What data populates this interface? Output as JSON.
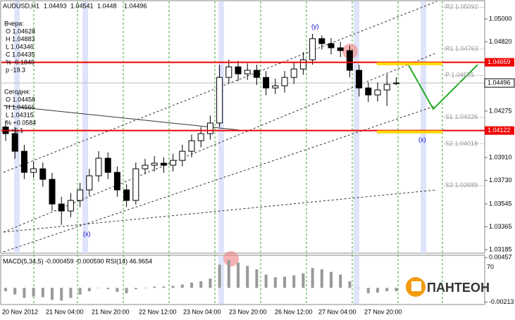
{
  "chart_data": {
    "type": "candlestick",
    "title": "AUDUSD,H1",
    "open": [
      1.0415,
      1.04098,
      1.03959,
      1.03793,
      1.03821,
      1.03738,
      1.03544,
      1.03489,
      1.03572,
      1.03655,
      1.03766,
      1.03904,
      1.03793,
      1.03655,
      1.03572,
      1.03821,
      1.03849,
      1.03865,
      1.03849,
      1.03887,
      1.03959,
      1.04042,
      1.04098,
      1.04181,
      1.0454,
      1.04623,
      1.04568,
      1.04596,
      1.0454,
      1.04457,
      1.04474,
      1.0454,
      1.04606,
      1.04679,
      1.04845,
      1.04806,
      1.04773,
      1.04751,
      1.04596,
      1.04457,
      1.04402,
      1.04441,
      1.04493
    ],
    "high": [
      1.042,
      1.0415,
      1.0401,
      1.0388,
      1.0387,
      1.0379,
      1.036,
      1.0363,
      1.0371,
      1.0382,
      1.0396,
      1.0395,
      1.0384,
      1.037,
      1.0387,
      1.039,
      1.0392,
      1.0391,
      1.0394,
      1.0401,
      1.0409,
      1.0415,
      1.0424,
      1.0464,
      1.0468,
      1.0467,
      1.0465,
      1.0464,
      1.0459,
      1.0453,
      1.0459,
      1.0466,
      1.0474,
      1.04883,
      1.0487,
      1.0485,
      1.0482,
      1.0479,
      1.0464,
      1.045,
      1.045,
      1.04566,
      1.04541
    ],
    "low": [
      1.0404,
      1.039,
      1.0374,
      1.0375,
      1.0368,
      1.0349,
      1.0338,
      1.0344,
      1.0352,
      1.0361,
      1.0372,
      1.0374,
      1.036,
      1.0352,
      1.0354,
      1.0378,
      1.038,
      1.0379,
      1.038,
      1.0384,
      1.0391,
      1.0399,
      1.0405,
      1.0415,
      1.0449,
      1.0451,
      1.0452,
      1.0448,
      1.044,
      1.0441,
      1.0442,
      1.0449,
      1.0456,
      1.0464,
      1.0476,
      1.0472,
      1.047,
      1.0454,
      1.0439,
      1.04346,
      1.0435,
      1.04315,
      1.0448
    ],
    "close": [
      1.04098,
      1.03959,
      1.03793,
      1.03821,
      1.03738,
      1.03544,
      1.03489,
      1.03572,
      1.03655,
      1.03766,
      1.03904,
      1.03793,
      1.03655,
      1.03572,
      1.03821,
      1.03849,
      1.03865,
      1.03849,
      1.03887,
      1.03959,
      1.04042,
      1.04098,
      1.04181,
      1.0454,
      1.04623,
      1.04568,
      1.04596,
      1.0454,
      1.04457,
      1.04474,
      1.0454,
      1.04606,
      1.04679,
      1.04845,
      1.04806,
      1.04773,
      1.04751,
      1.04596,
      1.04457,
      1.04402,
      1.04441,
      1.04485,
      1.04496
    ],
    "ylim": [
      1.03157,
      1.05138
    ],
    "yticks": [
      {
        "value": 1.05,
        "label": "1.05000"
      },
      {
        "value": 1.0482,
        "label": "1.04820"
      },
      {
        "value": 1.04275,
        "label": "1.04275"
      },
      {
        "value": 1.0391,
        "label": "1.03910"
      },
      {
        "value": 1.0373,
        "label": "1.03730"
      },
      {
        "value": 1.03545,
        "label": "1.03545"
      },
      {
        "value": 1.03365,
        "label": "1.03365"
      },
      {
        "value": 1.03185,
        "label": "1.03185"
      }
    ],
    "current_price": {
      "value": 1.04496,
      "label": "1.04496"
    },
    "levels": [
      {
        "value": 1.04659,
        "label": "1.04659"
      },
      {
        "value": 1.04122,
        "label": "1.04122"
      }
    ],
    "pivots": [
      {
        "value": 1.05092,
        "label": "R2 1.05092"
      },
      {
        "value": 1.04763,
        "label": "R1 1.04763"
      },
      {
        "value": 1.04555,
        "label": "P 1.04555"
      },
      {
        "value": 1.04226,
        "label": "S1 1.04226"
      },
      {
        "value": 1.04018,
        "label": "S2 1.04018"
      },
      {
        "value": 1.03689,
        "label": "S3 1.03689"
      }
    ],
    "yesterday": {
      "title": "Вчера:",
      "lines": [
        "O 1.04628",
        "H 1.04883",
        "L 1.04346",
        "C 1.04435",
        "% -0.1845",
        "p -19.3"
      ]
    },
    "today": {
      "title": "Сегодня:",
      "lines": [
        "O 1.04458",
        "H 1.04566",
        "L 1.04315",
        "% +0.0584",
        "p +6.1"
      ]
    },
    "annotations": [
      "(y)",
      "(x)",
      "(x)"
    ],
    "x_labels": [
      "20 Nov 2012",
      "21 Nov 04:00",
      "21 Nov 20:00",
      "22 Nov 12:00",
      "23 Nov 04:00",
      "23 Nov 20:00",
      "26 Nov 12:00",
      "27 Nov 04:00",
      "27 Nov 20:00"
    ],
    "indicator": {
      "title": "MACD(5,34,5) -0.000459 -0.000590  RSI(14) 46.9654",
      "values": [
        -0.0005,
        -0.001,
        -0.0015,
        -0.0013,
        -0.0014,
        -0.0018,
        -0.0019,
        -0.0015,
        -0.001,
        -0.0005,
        0,
        -0.0002,
        -0.0006,
        -0.0008,
        -0.0002,
        0,
        0.0002,
        0.0002,
        0.0003,
        0.0005,
        0.0008,
        0.001,
        0.0014,
        0.0035,
        0.0042,
        0.0038,
        0.0033,
        0.0028,
        0.002,
        0.0016,
        0.0017,
        0.0019,
        0.0022,
        0.003,
        0.0028,
        0.0024,
        0.002,
        0.001,
        0,
        -0.0008,
        -0.0007,
        -0.0005,
        -0.0005
      ],
      "ylim": [
        -0.0024,
        0.0048
      ],
      "yticks": [
        {
          "value": 0.00457,
          "label": "0.00457"
        },
        {
          "value": -0.00213,
          "label": "-0.00213"
        }
      ],
      "rsi_level": "70"
    },
    "logo": "ПАНТЕОН"
  }
}
